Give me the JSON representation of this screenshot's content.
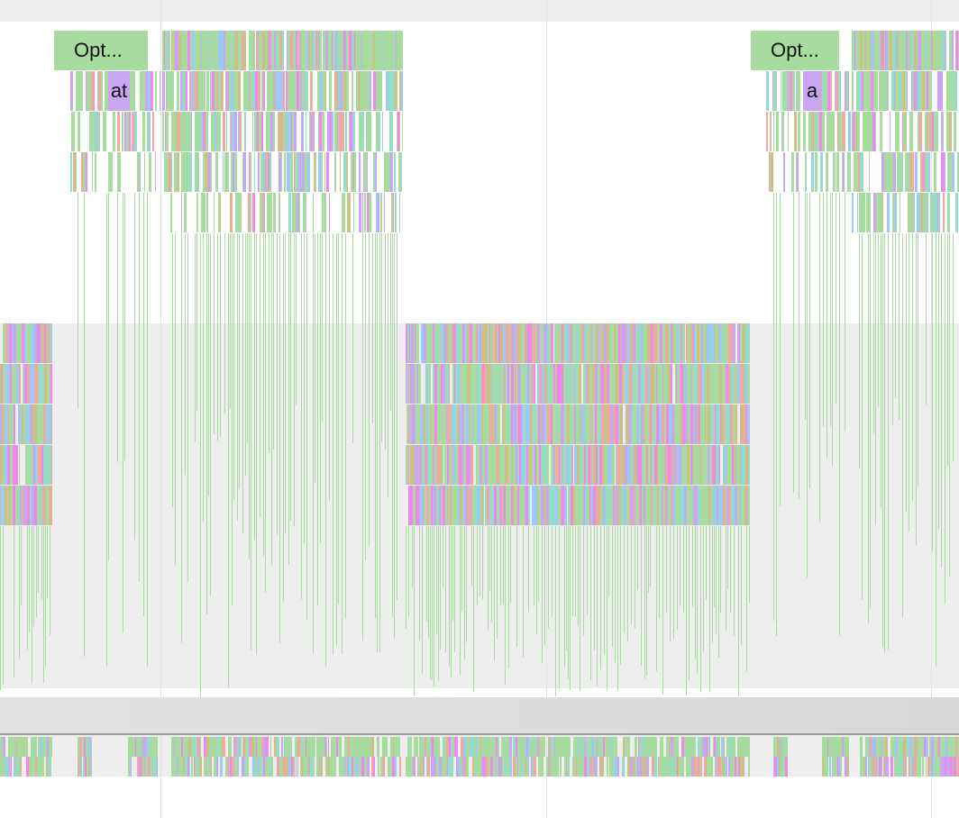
{
  "flame_chart": {
    "labels": {
      "task_left": "Opt...",
      "task_right": "Opt...",
      "subtask_left": "at",
      "subtask_right": "a"
    }
  },
  "palette": {
    "green": "#a8dba0",
    "blue": "#9ec8f7",
    "purple": "#c9a6f2",
    "magenta": "#ef88ee",
    "salmon": "#f1a7a2",
    "teal": "#94dccb",
    "khaki": "#cdbf86",
    "track_bg": "#eeeeee"
  }
}
